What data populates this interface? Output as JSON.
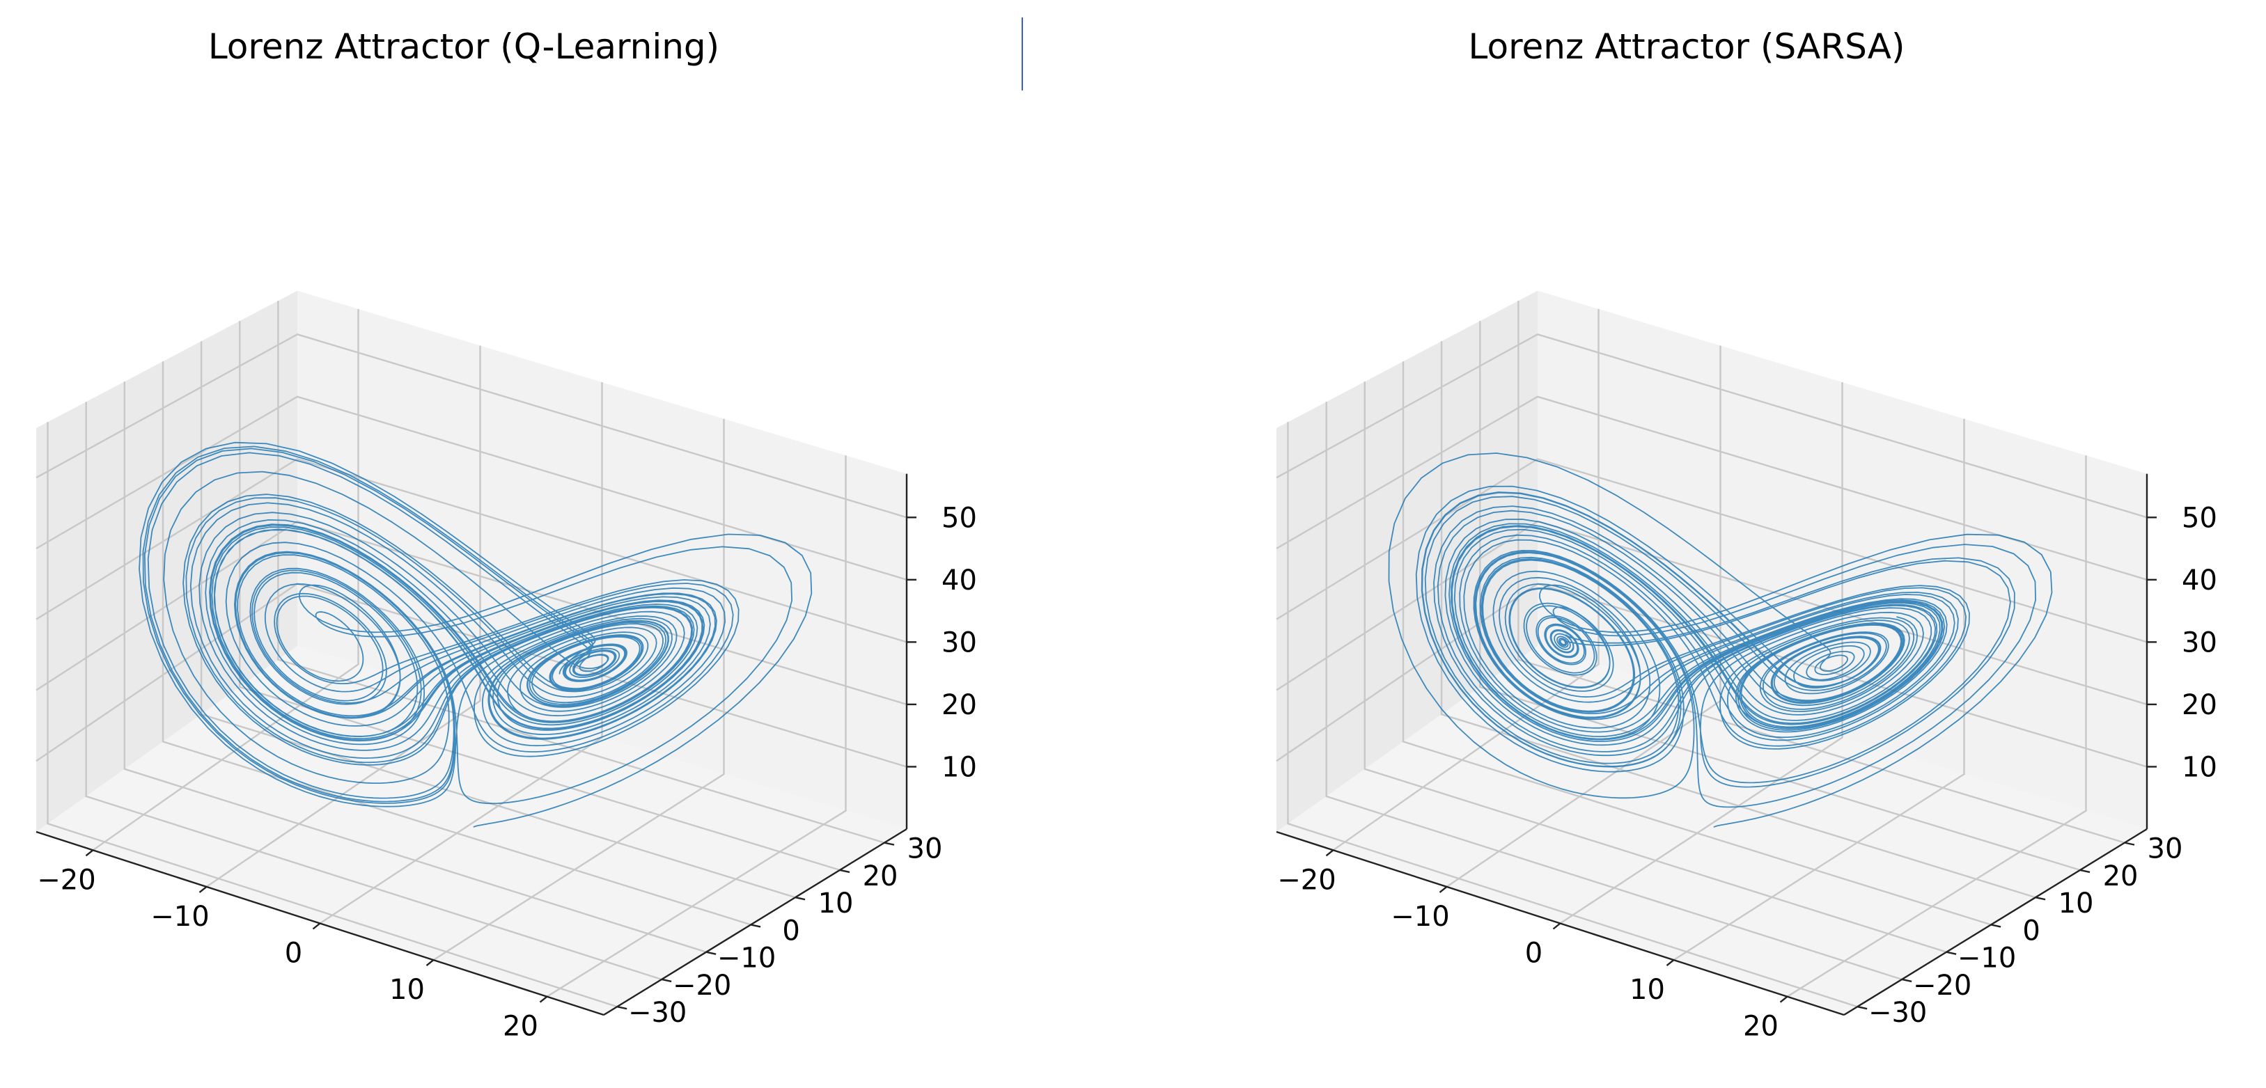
{
  "colors": {
    "line": "#1f77b4",
    "text": "#000000"
  },
  "chart_data": [
    {
      "type": "line3d",
      "title": "Lorenz Attractor (Q-Learning)",
      "method": "Q-Learning",
      "series": [
        {
          "name": "trajectory",
          "system": "lorenz",
          "sigma": 10,
          "rho": 28,
          "beta": 2.667,
          "initial": [
            1,
            1,
            1
          ]
        }
      ],
      "xlim": [
        -25,
        25
      ],
      "ylim": [
        -33,
        35
      ],
      "zlim": [
        0,
        57
      ],
      "xticks": [
        -20,
        -10,
        0,
        10,
        20
      ],
      "yticks": [
        -30,
        -20,
        -10,
        0,
        10,
        20,
        30
      ],
      "zticks": [
        10,
        20,
        30,
        40,
        50
      ],
      "xlabel": "",
      "ylabel": "",
      "zlabel": "",
      "grid": true
    },
    {
      "type": "line3d",
      "title": "Lorenz Attractor (SARSA)",
      "method": "SARSA",
      "series": [
        {
          "name": "trajectory",
          "system": "lorenz",
          "sigma": 10,
          "rho": 28,
          "beta": 2.667,
          "initial": [
            1.01,
            1,
            1
          ]
        }
      ],
      "xlim": [
        -25,
        25
      ],
      "ylim": [
        -33,
        35
      ],
      "zlim": [
        0,
        57
      ],
      "xticks": [
        -20,
        -10,
        0,
        10,
        20
      ],
      "yticks": [
        -30,
        -20,
        -10,
        0,
        10,
        20,
        30
      ],
      "zticks": [
        10,
        20,
        30,
        40,
        50
      ],
      "xlabel": "",
      "ylabel": "",
      "zlabel": "",
      "grid": true
    }
  ]
}
